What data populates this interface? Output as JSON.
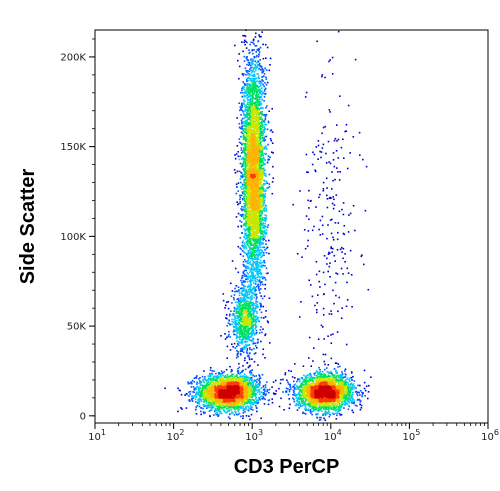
{
  "chart_data": {
    "type": "scatter",
    "subtype": "flow-cytometry-density",
    "xlabel": "CD3 PerCP",
    "ylabel": "Side Scatter",
    "x_scale": "log",
    "xlim": [
      10,
      1000000
    ],
    "ylim": [
      -4000,
      215000
    ],
    "x_ticks": [
      {
        "value": 10,
        "base": "10",
        "exp": "1"
      },
      {
        "value": 100,
        "base": "10",
        "exp": "2"
      },
      {
        "value": 1000,
        "base": "10",
        "exp": "3"
      },
      {
        "value": 10000,
        "base": "10",
        "exp": "4"
      },
      {
        "value": 100000,
        "base": "10",
        "exp": "5"
      },
      {
        "value": 1000000,
        "base": "10",
        "exp": "6"
      }
    ],
    "y_ticks": [
      {
        "value": 0,
        "label": "0"
      },
      {
        "value": 50000,
        "label": "50K"
      },
      {
        "value": 100000,
        "label": "100K"
      },
      {
        "value": 150000,
        "label": "150K"
      },
      {
        "value": 200000,
        "label": "200K"
      }
    ],
    "colormap": [
      "#0000cc",
      "#0055ff",
      "#00c8ff",
      "#00e060",
      "#c8e600",
      "#ffb400",
      "#ff3c00",
      "#cc0000"
    ],
    "populations": [
      {
        "center_x": 500,
        "center_y": 13000,
        "spread_log_x": 0.2,
        "spread_y": 5000,
        "count": 2600
      },
      {
        "center_x": 800,
        "center_y": 53000,
        "spread_log_x": 0.09,
        "spread_y": 9000,
        "count": 800
      },
      {
        "center_x": 1050,
        "center_y": 135000,
        "spread_log_x": 0.075,
        "spread_y": 33000,
        "count": 4200
      },
      {
        "center_x": 8500,
        "center_y": 13000,
        "spread_log_x": 0.18,
        "spread_y": 5000,
        "count": 2400
      },
      {
        "center_x": 10000,
        "center_y": 100000,
        "spread_log_x": 0.18,
        "spread_y": 55000,
        "count": 260
      }
    ]
  }
}
